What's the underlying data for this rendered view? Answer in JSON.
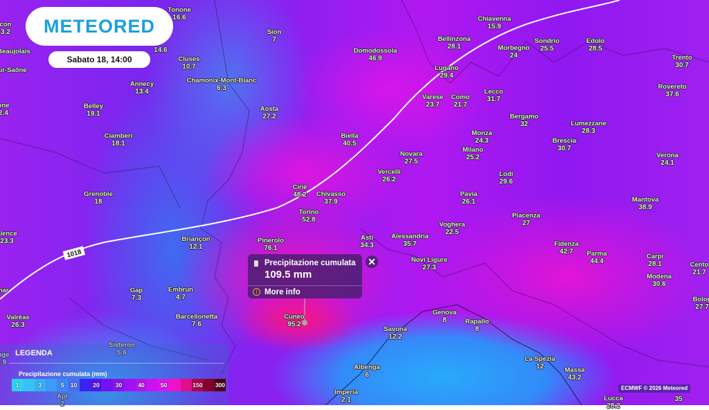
{
  "brand": {
    "logo": "METEORED",
    "datetime": "Sabato 18, 14:00"
  },
  "isobar": {
    "label": "1018"
  },
  "cities": [
    {
      "name": "con",
      "value": "3.2"
    },
    {
      "name": "Tonone",
      "value": "16.6"
    },
    {
      "name": "Beaujolais",
      "value": ""
    },
    {
      "name": "ur-Saône",
      "value": ""
    },
    {
      "name": "one",
      "value": "2.4"
    },
    {
      "name": "Annecy",
      "value": "13.4"
    },
    {
      "name": "Cluses",
      "value": "10.7"
    },
    {
      "name": "Chamonix-Mont-Blanc",
      "value": "6.3"
    },
    {
      "name": "Sion",
      "value": "7"
    },
    {
      "name": "Belley",
      "value": "19.1"
    },
    {
      "name": "Ciamberi",
      "value": "18.1"
    },
    {
      "name": "Aosta",
      "value": "27.2"
    },
    {
      "name": "Domodossola",
      "value": "46.9"
    },
    {
      "name": "Chiavenna",
      "value": "15.9"
    },
    {
      "name": "Bellinzona",
      "value": "28.1"
    },
    {
      "name": "Sondrio",
      "value": "25.5"
    },
    {
      "name": "Edolo",
      "value": "28.5"
    },
    {
      "name": "Trento",
      "value": "30.7"
    },
    {
      "name": "Morbegno",
      "value": "24"
    },
    {
      "name": "Lugano",
      "value": "29.4"
    },
    {
      "name": "Rovereto",
      "value": "37.6"
    },
    {
      "name": "Varese",
      "value": "23.7"
    },
    {
      "name": "Como",
      "value": "21.7"
    },
    {
      "name": "Lecco",
      "value": "31.7"
    },
    {
      "name": "Bergamo",
      "value": "32"
    },
    {
      "name": "Lumezzane",
      "value": "28.3"
    },
    {
      "name": "Brescia",
      "value": "30.7"
    },
    {
      "name": "Monza",
      "value": "24.3"
    },
    {
      "name": "Biella",
      "value": "40.5"
    },
    {
      "name": "Milano",
      "value": "25.2"
    },
    {
      "name": "Novara",
      "value": "27.5"
    },
    {
      "name": "Verona",
      "value": "24.1"
    },
    {
      "name": "Vercelli",
      "value": "26.2"
    },
    {
      "name": "Lodi",
      "value": "29.6"
    },
    {
      "name": "Grenoble",
      "value": "18"
    },
    {
      "name": "Ciriè",
      "value": "48.2"
    },
    {
      "name": "Chivasso",
      "value": "37.9"
    },
    {
      "name": "Pavia",
      "value": "26.1"
    },
    {
      "name": "Mantova",
      "value": "38.9"
    },
    {
      "name": "Torino",
      "value": "52.8"
    },
    {
      "name": "Piacenza",
      "value": "27"
    },
    {
      "name": "Voghera",
      "value": "22.5"
    },
    {
      "name": "alence",
      "value": "23.3"
    },
    {
      "name": "Briançon",
      "value": "12.1"
    },
    {
      "name": "Pinerolo",
      "value": "76.1"
    },
    {
      "name": "Asti",
      "value": "34.3"
    },
    {
      "name": "Alessandria",
      "value": "35.7"
    },
    {
      "name": "Fidenza",
      "value": "42.7"
    },
    {
      "name": "Parma",
      "value": "44.4"
    },
    {
      "name": "Carpi",
      "value": "28.1"
    },
    {
      "name": "Cento",
      "value": "21.7"
    },
    {
      "name": "Novi Ligure",
      "value": "27.3"
    },
    {
      "name": "Modena",
      "value": "30.6"
    },
    {
      "name": "Bolog",
      "value": "27.7"
    },
    {
      "name": "nar",
      "value": ""
    },
    {
      "name": "Gap",
      "value": "7.3"
    },
    {
      "name": "Embrun",
      "value": "4.7"
    },
    {
      "name": "Barcellonetta",
      "value": "7.6"
    },
    {
      "name": "Valréas",
      "value": "26.3"
    },
    {
      "name": "Cuneo",
      "value": "95.2"
    },
    {
      "name": "Genova",
      "value": "8"
    },
    {
      "name": "Rapallo",
      "value": "8"
    },
    {
      "name": "Savona",
      "value": "12.2"
    },
    {
      "name": "Sisteron",
      "value": "5.6"
    },
    {
      "name": "nge",
      "value": ".9"
    },
    {
      "name": "La Spezia",
      "value": "12"
    },
    {
      "name": "Albenga",
      "value": "6"
    },
    {
      "name": "Massa",
      "value": "43.2"
    },
    {
      "name": "Imperia",
      "value": "2.1"
    },
    {
      "name": "Apt",
      "value": "2"
    },
    {
      "name": "Lucca",
      "value": "28.2"
    },
    {
      "name": "",
      "value": "35"
    },
    {
      "name": "",
      "value": "14.6"
    }
  ],
  "popup": {
    "title": "Precipitazione cumulata",
    "value": "109.5 mm",
    "more_info": "More info",
    "close": "✕"
  },
  "legend": {
    "title": "LEGENDA",
    "subtitle": "Precipitazione cumulata (mm)",
    "scale": [
      {
        "label": "1",
        "color": "#2fd3f2"
      },
      {
        "label": "",
        "color": "#36c2f6"
      },
      {
        "label": "3",
        "color": "#38b0f6"
      },
      {
        "label": "",
        "color": "#3a9cf6"
      },
      {
        "label": "5",
        "color": "#3d88f6"
      },
      {
        "label": "10",
        "color": "#4870f2"
      },
      {
        "label": "",
        "color": "#3a22f0"
      },
      {
        "label": "20",
        "color": "#5812f0"
      },
      {
        "label": "",
        "color": "#7412f0"
      },
      {
        "label": "30",
        "color": "#8a12f0"
      },
      {
        "label": "",
        "color": "#a212f0"
      },
      {
        "label": "40",
        "color": "#b812f0"
      },
      {
        "label": "",
        "color": "#cc12f0"
      },
      {
        "label": "50",
        "color": "#de12ee"
      },
      {
        "label": "",
        "color": "#f012c8"
      },
      {
        "label": "",
        "color": "#e01088"
      },
      {
        "label": "150",
        "color": "#b0004e"
      },
      {
        "label": "",
        "color": "#80002a"
      },
      {
        "label": "300",
        "color": "#500018"
      }
    ]
  },
  "credit": "ECMWF © 2026 Meteored"
}
